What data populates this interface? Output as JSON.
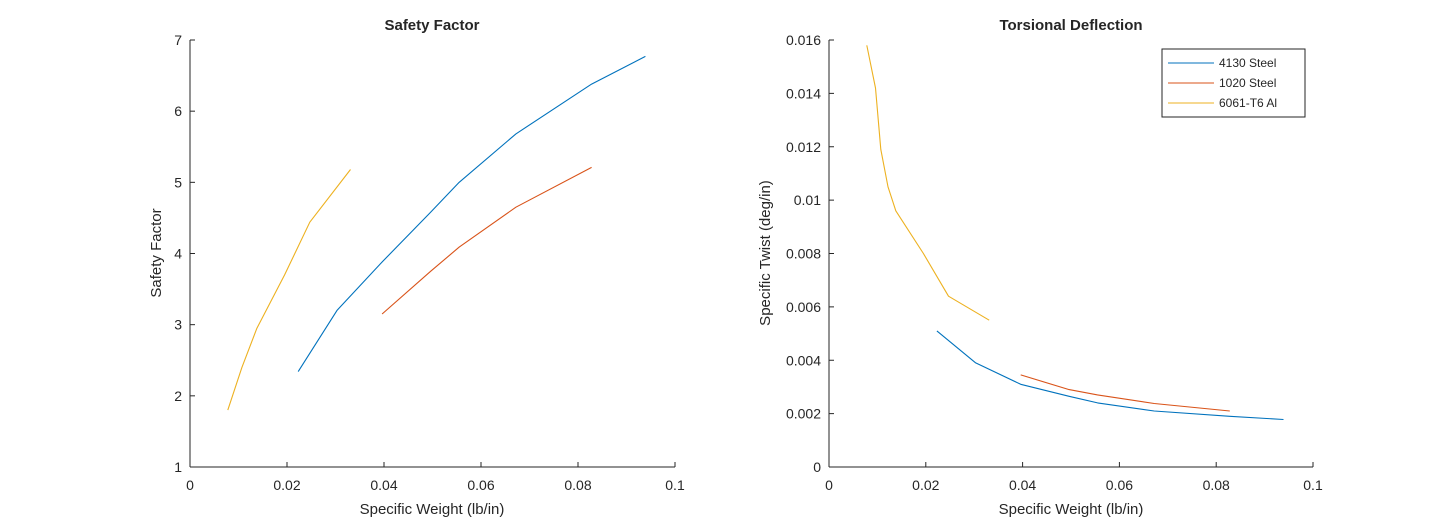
{
  "chart_data": [
    {
      "type": "line",
      "title": "Safety Factor",
      "xlabel": "Specific Weight (lb/in)",
      "ylabel": "Safety Factor",
      "xlim": [
        0,
        0.1
      ],
      "ylim": [
        1,
        7
      ],
      "xticks": [
        0,
        0.02,
        0.04,
        0.06,
        0.08,
        0.1
      ],
      "xtick_labels": [
        "0",
        "0.02",
        "0.04",
        "0.06",
        "0.08",
        "0.1"
      ],
      "yticks": [
        1,
        2,
        3,
        4,
        5,
        6,
        7
      ],
      "ytick_labels": [
        "1",
        "2",
        "3",
        "4",
        "5",
        "6",
        "7"
      ],
      "grid": false,
      "legend": null,
      "series": [
        {
          "color": "#0072BD",
          "x": [
            0.0223,
            0.0303,
            0.0396,
            0.0496,
            0.0555,
            0.0672,
            0.0828,
            0.0939
          ],
          "y": [
            2.34,
            3.2,
            3.88,
            4.58,
            5.0,
            5.68,
            6.38,
            6.77
          ]
        },
        {
          "color": "#D95319",
          "x": [
            0.0396,
            0.0496,
            0.0555,
            0.0672,
            0.0828
          ],
          "y": [
            3.15,
            3.75,
            4.09,
            4.65,
            5.21
          ]
        },
        {
          "color": "#EDB120",
          "x": [
            0.0078,
            0.0107,
            0.0138,
            0.0195,
            0.0247,
            0.0331
          ],
          "y": [
            1.8,
            2.4,
            2.95,
            3.7,
            4.44,
            5.18
          ]
        }
      ]
    },
    {
      "type": "line",
      "title": "Torsional Deflection",
      "xlabel": "Specific Weight (lb/in)",
      "ylabel": "Specific Twist (deg/in)",
      "xlim": [
        0,
        0.1
      ],
      "ylim": [
        0,
        0.016
      ],
      "xticks": [
        0,
        0.02,
        0.04,
        0.06,
        0.08,
        0.1
      ],
      "xtick_labels": [
        "0",
        "0.02",
        "0.04",
        "0.06",
        "0.08",
        "0.1"
      ],
      "yticks": [
        0,
        0.002,
        0.004,
        0.006,
        0.008,
        0.01,
        0.012,
        0.014,
        0.016
      ],
      "ytick_labels": [
        "0",
        "0.002",
        "0.004",
        "0.006",
        "0.008",
        "0.01",
        "0.012",
        "0.014",
        "0.016"
      ],
      "grid": false,
      "legend": "top-right",
      "series": [
        {
          "name": "4130 Steel",
          "color": "#0072BD",
          "x": [
            0.0223,
            0.0303,
            0.0396,
            0.0496,
            0.0555,
            0.0672,
            0.0828,
            0.0939
          ],
          "y": [
            0.0051,
            0.0039,
            0.0031,
            0.00265,
            0.0024,
            0.0021,
            0.0019,
            0.00178
          ]
        },
        {
          "name": "1020 Steel",
          "color": "#D95319",
          "x": [
            0.0396,
            0.0496,
            0.0555,
            0.0672,
            0.0828
          ],
          "y": [
            0.00345,
            0.0029,
            0.0027,
            0.00238,
            0.0021
          ]
        },
        {
          "name": "6061-T6 Al",
          "color": "#EDB120",
          "x": [
            0.0078,
            0.0096,
            0.0107,
            0.0122,
            0.0138,
            0.0195,
            0.0247,
            0.0331
          ],
          "y": [
            0.0158,
            0.0142,
            0.0119,
            0.0105,
            0.0096,
            0.008,
            0.0064,
            0.0055
          ]
        }
      ]
    }
  ]
}
